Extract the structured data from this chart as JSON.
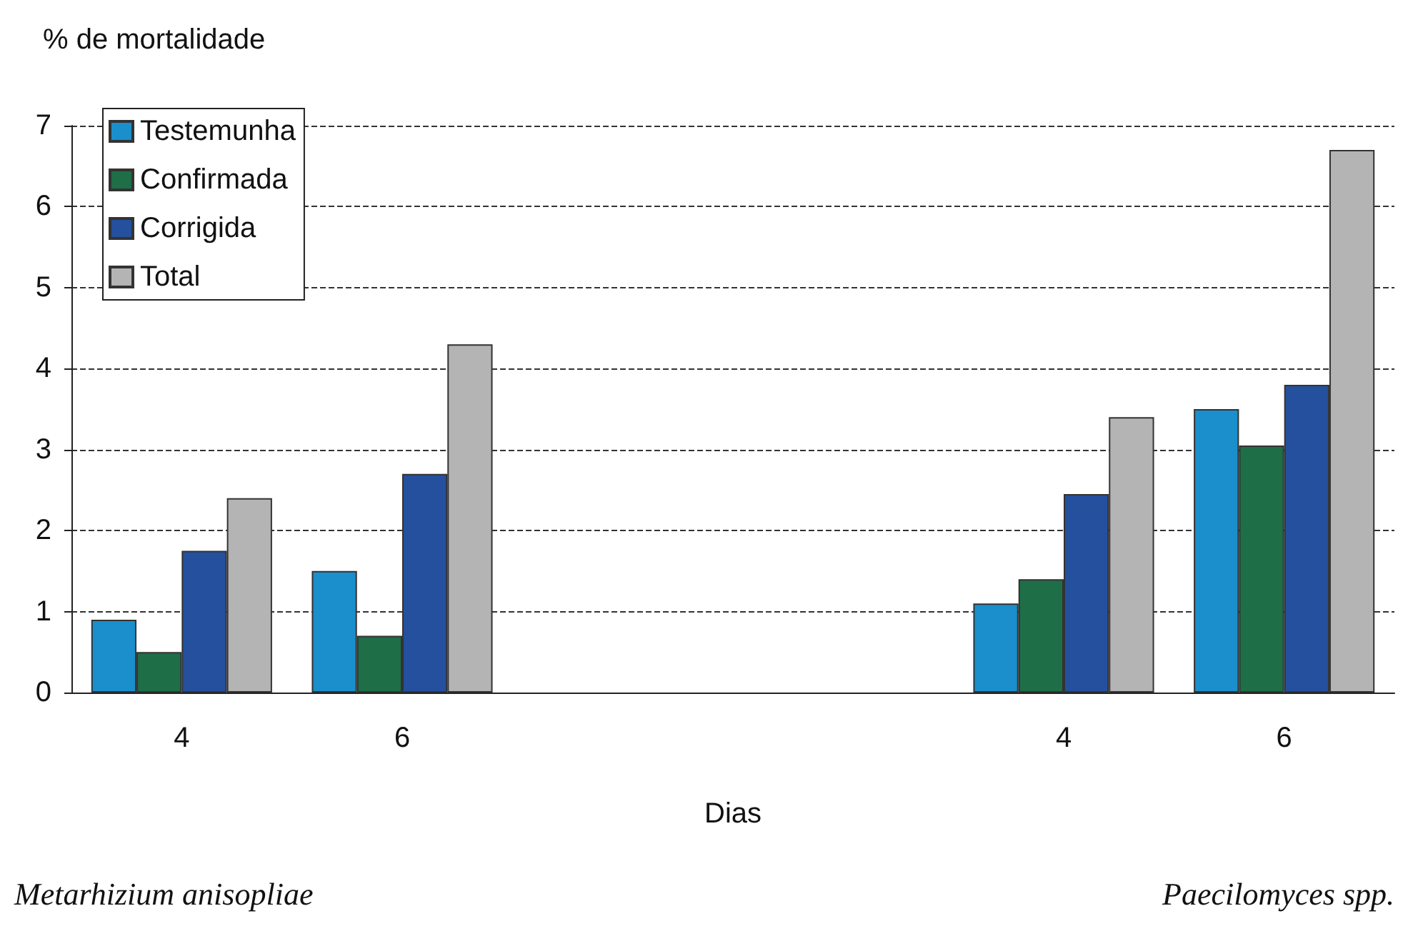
{
  "chart_data": {
    "type": "bar",
    "ylabel": "% de mortalidade",
    "xlabel": "Dias",
    "categories": [
      "4",
      "6",
      null,
      null,
      "4",
      "6"
    ],
    "series": [
      {
        "name": "Testemunha",
        "color": "#1a8fcc",
        "values": [
          0.9,
          1.5,
          null,
          null,
          1.1,
          3.5
        ]
      },
      {
        "name": "Confirmada",
        "color": "#1e6e48",
        "values": [
          0.5,
          0.7,
          null,
          null,
          1.4,
          3.05
        ]
      },
      {
        "name": "Corrigida",
        "color": "#24509e",
        "values": [
          1.75,
          2.7,
          null,
          null,
          2.45,
          3.8
        ]
      },
      {
        "name": "Total",
        "color": "#b4b4b4",
        "values": [
          2.4,
          4.3,
          null,
          null,
          3.4,
          6.7
        ]
      }
    ],
    "ylim": [
      0,
      7
    ],
    "yticks": [
      0,
      1,
      2,
      3,
      4,
      5,
      6,
      7
    ],
    "grid": "y",
    "legend": "top left",
    "annotations": [
      "Metarhizium anisopliae",
      "Paecilomyces spp."
    ]
  }
}
